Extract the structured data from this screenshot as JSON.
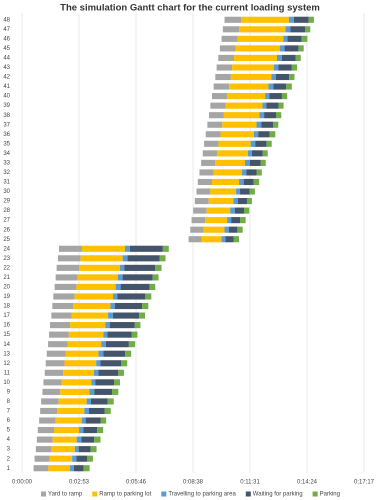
{
  "chart_data": {
    "type": "gantt",
    "title": "The simulation Gantt chart for the current loading system",
    "categories": [
      "1",
      "2",
      "3",
      "4",
      "5",
      "6",
      "7",
      "8",
      "9",
      "10",
      "11",
      "12",
      "13",
      "14",
      "15",
      "16",
      "17",
      "18",
      "19",
      "20",
      "21",
      "22",
      "23",
      "24",
      "25",
      "26",
      "27",
      "28",
      "29",
      "30",
      "31",
      "32",
      "33",
      "34",
      "35",
      "36",
      "37",
      "38",
      "39",
      "40",
      "41",
      "42",
      "43",
      "44",
      "45",
      "46",
      "47",
      "48"
    ],
    "start": [
      35,
      38,
      42,
      45,
      48,
      52,
      55,
      58,
      62,
      65,
      69,
      72,
      75,
      79,
      82,
      85,
      89,
      92,
      95,
      99,
      102,
      105,
      109,
      112,
      505,
      510,
      514,
      519,
      524,
      529,
      533,
      538,
      543,
      548,
      552,
      557,
      562,
      567,
      571,
      576,
      581,
      586,
      590,
      595,
      600,
      605,
      609,
      614
    ],
    "series": [
      {
        "name": "Yard to ramp",
        "color": "#a5a5a5",
        "values": [
          45,
          46,
          47,
          48,
          49,
          50,
          52,
          53,
          54,
          55,
          56,
          57,
          58,
          59,
          60,
          61,
          62,
          63,
          65,
          66,
          67,
          68,
          69,
          70,
          40,
          40,
          41,
          41,
          42,
          42,
          43,
          43,
          43,
          44,
          44,
          45,
          45,
          45,
          46,
          46,
          47,
          47,
          47,
          48,
          48,
          49,
          49,
          50
        ]
      },
      {
        "name": "Ramp to parking lot",
        "color": "#ffc000",
        "values": [
          65,
          68,
          71,
          73,
          76,
          79,
          82,
          85,
          88,
          90,
          93,
          96,
          99,
          102,
          105,
          107,
          110,
          113,
          116,
          119,
          122,
          124,
          127,
          130,
          60,
          64,
          67,
          71,
          75,
          78,
          82,
          86,
          90,
          93,
          97,
          101,
          104,
          108,
          112,
          115,
          119,
          123,
          127,
          130,
          134,
          138,
          141,
          145
        ]
      },
      {
        "name": "Travelling to parking area",
        "color": "#5b9bd5",
        "values": [
          12,
          13,
          12,
          14,
          13,
          12,
          14,
          13,
          15,
          12,
          14,
          13,
          15,
          14,
          12,
          13,
          15,
          14,
          13,
          15,
          14,
          13,
          15,
          15,
          12,
          13,
          12,
          14,
          13,
          12,
          14,
          13,
          15,
          12,
          14,
          13,
          15,
          14,
          12,
          13,
          15,
          14,
          13,
          15,
          14,
          13,
          15,
          15
        ]
      },
      {
        "name": "Waiting for parking",
        "color": "#44546a",
        "values": [
          30,
          33,
          36,
          39,
          42,
          45,
          48,
          51,
          54,
          57,
          60,
          63,
          66,
          70,
          73,
          76,
          79,
          82,
          85,
          88,
          91,
          94,
          97,
          100,
          25,
          26,
          27,
          28,
          28,
          29,
          30,
          31,
          32,
          33,
          34,
          35,
          35,
          36,
          37,
          38,
          39,
          40,
          41,
          42,
          42,
          43,
          44,
          45
        ]
      },
      {
        "name": "Parking",
        "color": "#70ad47",
        "values": [
          18,
          17,
          18,
          19,
          18,
          17,
          18,
          18,
          19,
          18,
          17,
          18,
          18,
          19,
          18,
          17,
          18,
          19,
          18,
          17,
          18,
          19,
          18,
          18,
          16,
          16,
          17,
          16,
          15,
          16,
          17,
          16,
          16,
          15,
          16,
          17,
          16,
          16,
          15,
          16,
          17,
          16,
          16,
          15,
          16,
          17,
          16,
          16
        ]
      }
    ],
    "xlim": [
      0,
      1036.8
    ],
    "xticks": [
      {
        "value": 0,
        "label": "0:00:00"
      },
      {
        "value": 172.8,
        "label": "0:02:53"
      },
      {
        "value": 345.6,
        "label": "0:05:46"
      },
      {
        "value": 518.4,
        "label": "0:08:38"
      },
      {
        "value": 691.2,
        "label": "0:11:31"
      },
      {
        "value": 864,
        "label": "0:14:24"
      },
      {
        "value": 1036.8,
        "label": "0:17:17"
      }
    ],
    "grid": true,
    "legend": "bottom"
  }
}
